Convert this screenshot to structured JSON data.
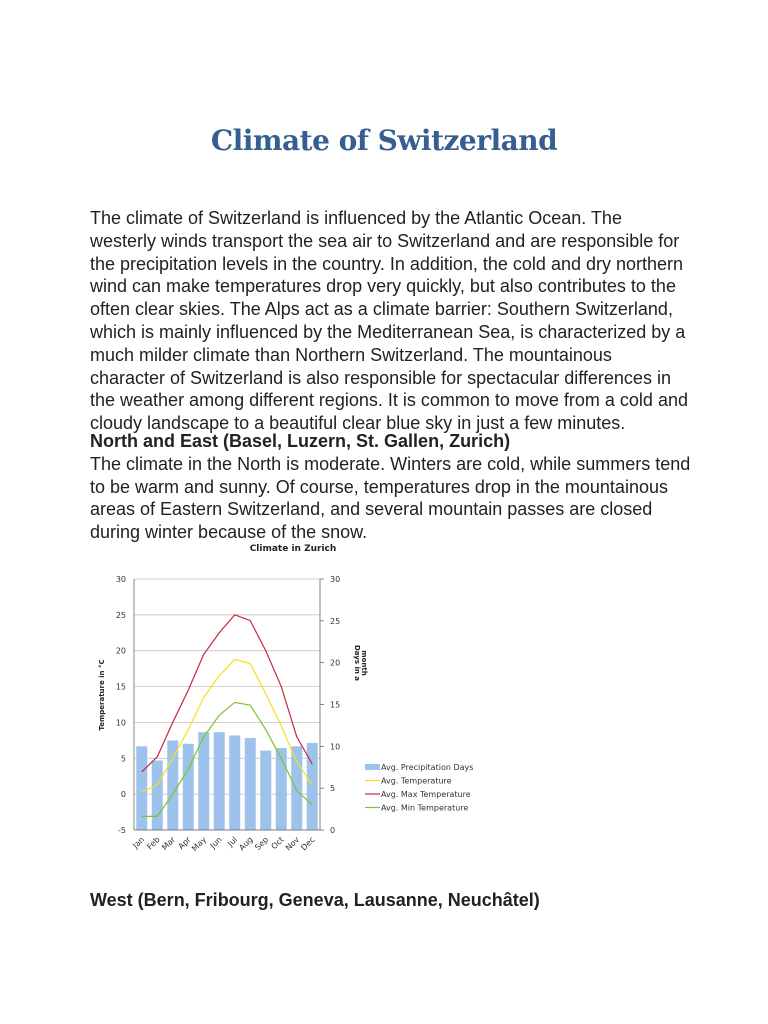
{
  "title": "Climate of Switzerland",
  "intro_lines": [
    "The climate of Switzerland is influenced by the Atlantic Ocean. The",
    "westerly winds transport the sea air to Switzerland and are responsible for",
    "the precipitation levels in the country. In addition, the cold and dry northern",
    "wind can make temperatures drop very quickly, but also contributes to the",
    "often clear skies. The Alps act as a climate barrier: Southern Switzerland,",
    "which is mainly influenced by the Mediterranean Sea, is characterized by a",
    "much milder climate than Northern Switzerland. The mountainous",
    "character of Switzerland is also responsible for spectacular differences in",
    "the weather among different regions. It is common to move from a cold and",
    "cloudy landscape to a beautiful clear blue sky in just a few minutes."
  ],
  "north": {
    "heading": "North and East (Basel, Luzern, St. Gallen, Zurich)",
    "lines": [
      "The climate in the North is moderate. Winters are cold, while summers tend",
      "to be warm and sunny. Of course, temperatures drop in the mountainous",
      "areas of Eastern Switzerland, and several mountain passes are closed",
      "during winter because of the snow."
    ]
  },
  "west": {
    "heading": "West (Bern, Fribourg, Geneva, Lausanne, Neuchâtel)"
  },
  "chart_data": {
    "type": "bar+line",
    "title": "Climate in Zurich",
    "ylabel": "Temperature in °C",
    "y2label_lines": [
      "Days in a",
      "month"
    ],
    "ylim": [
      -5,
      30
    ],
    "y2lim": [
      0,
      30
    ],
    "yticks": [
      -5,
      0,
      5,
      10,
      15,
      20,
      25,
      30
    ],
    "y2ticks": [
      0,
      5,
      10,
      15,
      20,
      25,
      30
    ],
    "grid": true,
    "legend_position": "right",
    "categories": [
      "Jan",
      "Feb",
      "Mar",
      "Apr",
      "May",
      "Jun",
      "Jul",
      "Aug",
      "Sep",
      "Oct",
      "Nov",
      "Dec"
    ],
    "bars": {
      "name": "Avg. Precipitation Days",
      "axis": "right",
      "color": "#9dc3ec",
      "values": [
        10,
        8.3,
        10.7,
        10.3,
        11.7,
        11.7,
        11.3,
        11,
        9.5,
        9.8,
        10,
        10.4
      ]
    },
    "series": [
      {
        "name": "Avg. Temperature",
        "color": "#f2e21a",
        "values": [
          0.3,
          1.3,
          5,
          9,
          13.5,
          16.5,
          18.8,
          18.2,
          14,
          9.5,
          4.5,
          1.3
        ]
      },
      {
        "name": "Avg. Max Temperature",
        "color": "#c8283c",
        "values": [
          3.1,
          5.2,
          10,
          14.5,
          19.5,
          22.5,
          25,
          24.2,
          20,
          15,
          8,
          4.2
        ]
      },
      {
        "name": "Avg. Min Temperature",
        "color": "#7cc42a",
        "values": [
          -3.1,
          -3.1,
          0,
          3.5,
          8,
          11,
          12.8,
          12.4,
          9,
          5,
          0.5,
          -1.5
        ]
      }
    ]
  }
}
